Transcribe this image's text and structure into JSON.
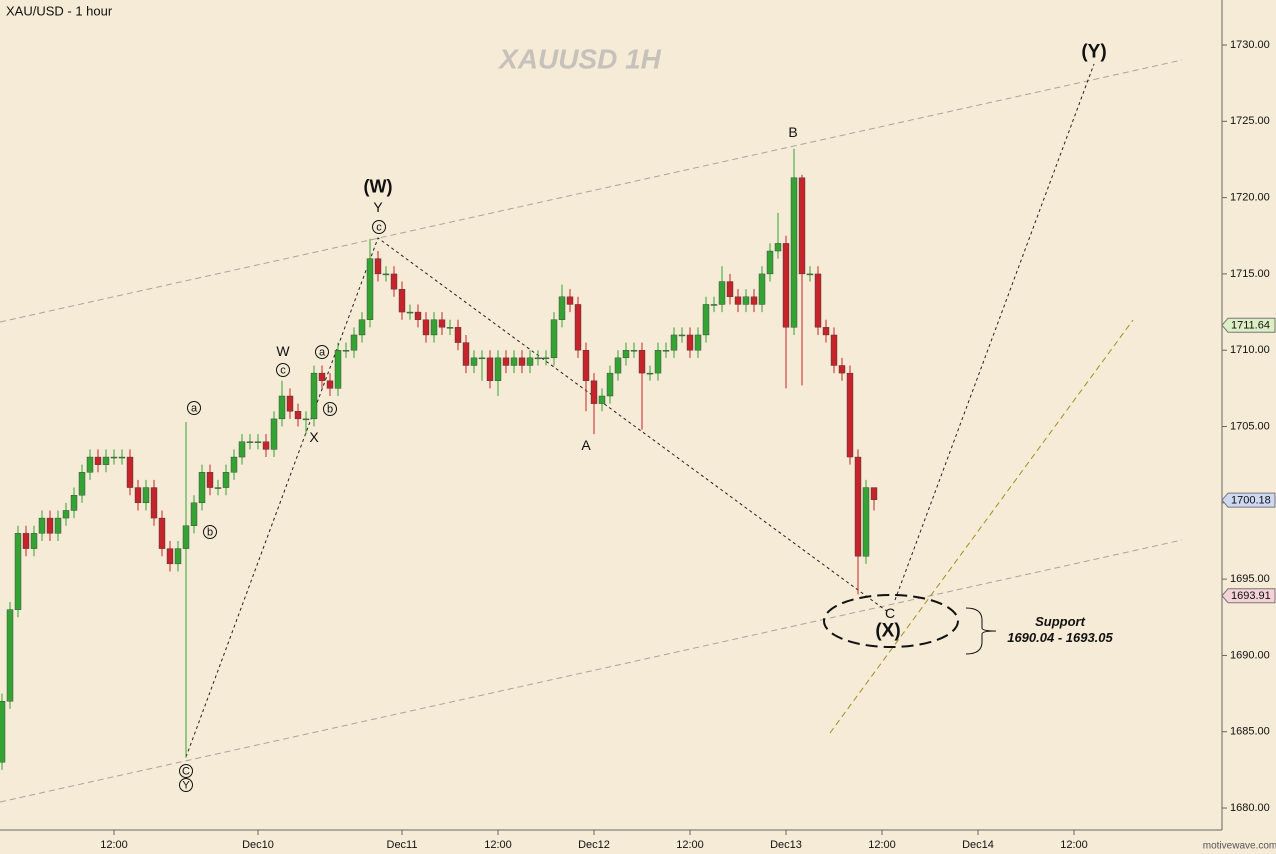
{
  "chart_data": {
    "type": "candlestick",
    "title": "XAU/USD - 1 hour",
    "watermark": "XAUUSD  1H",
    "x": [
      0,
      1,
      2,
      3,
      4,
      5,
      6,
      7,
      8,
      9,
      10,
      11,
      12,
      13,
      14,
      15,
      16,
      17,
      18,
      19,
      20,
      21,
      22,
      23,
      24,
      25,
      26,
      27,
      28,
      29,
      30,
      31,
      32,
      33,
      34,
      35,
      36,
      37,
      38,
      39,
      40,
      41,
      42,
      43,
      44,
      45,
      46,
      47,
      48,
      49,
      50,
      51,
      52,
      53,
      54,
      55,
      56,
      57,
      58,
      59,
      60,
      61,
      62,
      63,
      64,
      65,
      66,
      67,
      68,
      69,
      70,
      71,
      72,
      73,
      74,
      75,
      76,
      77,
      78,
      79,
      80,
      81,
      82,
      83,
      84,
      85,
      86,
      87,
      88,
      89,
      90,
      91,
      92,
      93,
      94,
      95,
      96,
      97,
      98,
      99,
      100,
      101,
      102,
      103,
      104,
      105,
      106,
      107,
      108,
      109
    ],
    "open": [
      1683,
      1687,
      1693,
      1698,
      1697,
      1698,
      1699,
      1698,
      1699,
      1699.5,
      1700.5,
      1702,
      1703,
      1702.5,
      1703,
      1703,
      1703,
      1701,
      1700,
      1701,
      1699,
      1697,
      1696,
      1697,
      1698.5,
      1700,
      1702,
      1701,
      1701,
      1702,
      1703,
      1704,
      1704,
      1704,
      1703.5,
      1705.5,
      1707,
      1706,
      1705.5,
      1705.5,
      1708.5,
      1708,
      1707.5,
      1710,
      1710,
      1711,
      1712,
      1716,
      1715,
      1715,
      1714,
      1712.5,
      1712.5,
      1712,
      1711,
      1712,
      1711.5,
      1711.5,
      1710.5,
      1709,
      1709.5,
      1709.5,
      1708,
      1709.5,
      1709,
      1709.5,
      1709,
      1709.5,
      1709.5,
      1709.5,
      1712,
      1713.5,
      1713,
      1710,
      1708,
      1706.5,
      1707,
      1708.5,
      1709.5,
      1710,
      1710,
      1708.5,
      1708.5,
      1710,
      1710,
      1711,
      1711,
      1710,
      1711,
      1713,
      1713,
      1714.5,
      1713.5,
      1713,
      1713.5,
      1713,
      1715,
      1716.5,
      1717,
      1711.5,
      1721.3,
      1715,
      1715,
      1711.5,
      1711,
      1709,
      1708.5,
      1703,
      1696.5,
      1701
    ],
    "high": [
      1687.5,
      1693.5,
      1698.5,
      1698.5,
      1698.5,
      1699.5,
      1699.5,
      1699.5,
      1700,
      1701,
      1702.5,
      1703.5,
      1703.5,
      1703.5,
      1703.5,
      1703.5,
      1703.5,
      1701.5,
      1701.5,
      1701.5,
      1699.5,
      1697.5,
      1697.5,
      1705.3,
      1700.5,
      1702.5,
      1702.5,
      1701.5,
      1702.5,
      1703.5,
      1704.5,
      1704.5,
      1704.5,
      1704.5,
      1706,
      1708,
      1707.5,
      1706.5,
      1706,
      1709,
      1709,
      1708.5,
      1710.5,
      1710.5,
      1711.5,
      1712.5,
      1717.3,
      1716.5,
      1715.5,
      1715.5,
      1714.5,
      1713,
      1713,
      1712.5,
      1712.5,
      1712.5,
      1712,
      1712,
      1711,
      1710,
      1710,
      1710,
      1710,
      1710,
      1710,
      1710,
      1710,
      1710,
      1710,
      1712.5,
      1714.3,
      1714,
      1713.5,
      1710.5,
      1708.5,
      1707.5,
      1709,
      1710,
      1710.5,
      1710.5,
      1710.5,
      1709,
      1710.5,
      1710.5,
      1711.5,
      1711.5,
      1711.5,
      1711.5,
      1713.5,
      1713.5,
      1715.5,
      1715,
      1714,
      1714,
      1714,
      1715.5,
      1717,
      1719,
      1717.5,
      1723.2,
      1721.5,
      1715.5,
      1715.5,
      1712,
      1711.5,
      1709.5,
      1709,
      1703.5,
      1701.5,
      1701
    ],
    "low": [
      1682.5,
      1686.5,
      1692.5,
      1696.5,
      1696.5,
      1697.5,
      1697.5,
      1697.5,
      1698.5,
      1699,
      1700,
      1701.5,
      1702,
      1702,
      1702.5,
      1702.5,
      1700.5,
      1699.5,
      1699.5,
      1698.5,
      1696.5,
      1695.5,
      1695.5,
      1683.3,
      1698,
      1699.5,
      1700.5,
      1700.5,
      1700.5,
      1701.5,
      1702.5,
      1703.5,
      1703.5,
      1703,
      1703,
      1705,
      1705.5,
      1705,
      1704.5,
      1705,
      1707.5,
      1707,
      1707,
      1709.5,
      1709.5,
      1710.5,
      1711.5,
      1714.5,
      1714.5,
      1713.5,
      1712,
      1712,
      1711.5,
      1710.5,
      1710.5,
      1711,
      1711,
      1710,
      1708.5,
      1708.5,
      1708,
      1707.5,
      1707,
      1708.5,
      1708.5,
      1708.5,
      1708.5,
      1709,
      1709,
      1709,
      1711.5,
      1712.5,
      1709.5,
      1706,
      1704.5,
      1706,
      1706.5,
      1708,
      1709,
      1709.5,
      1704.8,
      1708,
      1708,
      1709.5,
      1709.5,
      1710.5,
      1709.5,
      1709.5,
      1710.5,
      1712.5,
      1712.5,
      1713,
      1712.5,
      1712.5,
      1712.5,
      1712.5,
      1714.5,
      1716,
      1707.5,
      1711,
      1707.7,
      1714.5,
      1711,
      1710.5,
      1708.5,
      1708,
      1702.5,
      1694,
      1696,
      1699.5
    ],
    "close": [
      1687,
      1693,
      1698,
      1697,
      1698,
      1699,
      1698,
      1699,
      1699.5,
      1700.5,
      1702,
      1703,
      1702.5,
      1703,
      1703,
      1703,
      1701,
      1700,
      1701,
      1699,
      1697,
      1696,
      1697,
      1698.5,
      1700,
      1702,
      1701,
      1701,
      1702,
      1703,
      1704,
      1704,
      1704,
      1703.5,
      1705.5,
      1707,
      1706,
      1705.5,
      1705.5,
      1708.5,
      1708,
      1707.5,
      1710,
      1710,
      1711,
      1712,
      1716,
      1715,
      1715,
      1714,
      1712.5,
      1712.5,
      1712,
      1711,
      1712,
      1711.5,
      1711.5,
      1710.5,
      1709,
      1709.5,
      1709.5,
      1708,
      1709.5,
      1709,
      1709.5,
      1709,
      1709.5,
      1709.5,
      1709.5,
      1712,
      1713.5,
      1713,
      1710,
      1708,
      1706.5,
      1707,
      1708.5,
      1709.5,
      1710,
      1710,
      1708.5,
      1708.5,
      1710,
      1710,
      1711,
      1711,
      1710,
      1711,
      1713,
      1713,
      1714.5,
      1713.5,
      1713,
      1713.5,
      1713,
      1715,
      1716.5,
      1717,
      1711.5,
      1721.3,
      1715,
      1715,
      1711.5,
      1711,
      1709,
      1708.5,
      1703,
      1696.5,
      1701,
      1700.2
    ],
    "up_color": "#34a334",
    "down_color": "#c6242b",
    "xlim": [
      -0.25,
      152.5
    ],
    "xticks": [
      {
        "value": 14,
        "label": "12:00"
      },
      {
        "value": 32,
        "label": "Dec10"
      },
      {
        "value": 50,
        "label": "Dec11"
      },
      {
        "value": 62,
        "label": "12:00"
      },
      {
        "value": 74,
        "label": "Dec12"
      },
      {
        "value": 86,
        "label": "12:00"
      },
      {
        "value": 98,
        "label": "Dec13"
      },
      {
        "value": 110,
        "label": "12:00"
      },
      {
        "value": 122,
        "label": "Dec14"
      },
      {
        "value": 134,
        "label": "12:00"
      }
    ],
    "ylim": [
      1678.56,
      1732.95
    ],
    "yticks": [
      {
        "value": 1680,
        "label": "1680.00"
      },
      {
        "value": 1685,
        "label": "1685.00"
      },
      {
        "value": 1690,
        "label": "1690.00"
      },
      {
        "value": 1695,
        "label": "1695.00"
      },
      {
        "value": 1700,
        "label": "1700.00"
      },
      {
        "value": 1705,
        "label": "1705.00"
      },
      {
        "value": 1710,
        "label": "1710.00"
      },
      {
        "value": 1715,
        "label": "1715.00"
      },
      {
        "value": 1720,
        "label": "1720.00"
      },
      {
        "value": 1725,
        "label": "1725.00"
      },
      {
        "value": 1730,
        "label": "1730.00"
      }
    ],
    "price_markers": [
      {
        "value": 1711.64,
        "color": "#dcefc4"
      },
      {
        "value": 1700.18,
        "color": "#cfd8f2"
      },
      {
        "value": 1693.91,
        "color": "#f4d2d8"
      }
    ],
    "annotations": [
      "(Y)",
      "(W)",
      "Y",
      "c",
      "W",
      "c",
      "a",
      "b",
      "X",
      "a",
      "b",
      "C",
      "Y",
      "A",
      "B",
      "C",
      "(X)",
      "Support",
      "1690.04 - 1693.05"
    ],
    "footer": "motivewave.com"
  }
}
